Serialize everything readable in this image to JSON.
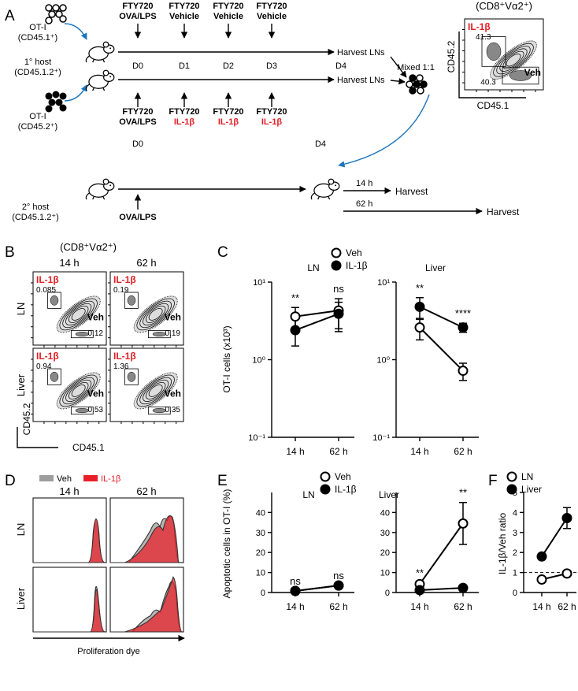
{
  "panel_labels": [
    "A",
    "B",
    "C",
    "D",
    "E",
    "F"
  ],
  "schematic": {
    "donor1": [
      "OT-I",
      "(CD45.1⁺)"
    ],
    "host1": [
      "1° host",
      "(CD45.1.2⁺)"
    ],
    "donor2": [
      "OT-I",
      "(CD45.2⁺)"
    ],
    "top_treatments": [
      [
        "FTY720",
        "OVA/LPS"
      ],
      [
        "FTY720",
        "Vehicle"
      ],
      [
        "FTY720",
        "Vehicle"
      ],
      [
        "FTY720",
        "Vehicle"
      ]
    ],
    "bottom_treatments": [
      [
        "FTY720",
        "OVA/LPS"
      ],
      [
        "FTY720",
        "IL-1β"
      ],
      [
        "FTY720",
        "IL-1β"
      ],
      [
        "FTY720",
        "IL-1β"
      ]
    ],
    "treatment_color": "#e31e24",
    "days": [
      "D0",
      "D1",
      "D2",
      "D3",
      "D4"
    ],
    "harvest_lns": [
      "Harvest LNs",
      "Harvest LNs"
    ],
    "mixed": "Mixed 1:1",
    "flow": {
      "gate_title": "(CD8⁺Vα2⁺)",
      "il1b": "IL-1β",
      "il1b_pct": "41.3",
      "veh": "Veh",
      "veh_pct": "40.3",
      "y_axis": "CD45.2",
      "x_axis": "CD45.1"
    },
    "second_host": [
      "2° host",
      "(CD45.1.2⁺)"
    ],
    "second_days": [
      "D0",
      "D4"
    ],
    "second_treatment": "OVA/LPS",
    "harvests": [
      {
        "time": "14 h",
        "label": "Harvest"
      },
      {
        "time": "62 h",
        "label": "Harvest"
      }
    ]
  },
  "panel_B": {
    "gate_title": "(CD8⁺Vα2⁺)",
    "columns": [
      "14 h",
      "62 h"
    ],
    "rows": [
      "LN",
      "Liver"
    ],
    "il1b_color": "#e31e24",
    "plots": [
      [
        {
          "il1b": "IL-1β",
          "il1b_pct": "0.085",
          "veh": "Veh",
          "veh_pct": "0.12"
        },
        {
          "il1b": "IL-1β",
          "il1b_pct": "0.19",
          "veh": "Veh",
          "veh_pct": "0.19"
        }
      ],
      [
        {
          "il1b": "IL-1β",
          "il1b_pct": "0.94",
          "veh": "Veh",
          "veh_pct": "0.53"
        },
        {
          "il1b": "IL-1β",
          "il1b_pct": "1.36",
          "veh": "Veh",
          "veh_pct": "0.35"
        }
      ]
    ],
    "y_axis": "CD45.2",
    "x_axis": "CD45.1"
  },
  "panel_D": {
    "legend": [
      {
        "name": "Veh",
        "color": "#9e9e9e"
      },
      {
        "name": "IL-1β",
        "color": "#e8202a"
      }
    ],
    "columns": [
      "14 h",
      "62 h"
    ],
    "rows": [
      "LN",
      "Liver"
    ],
    "x_axis": "Proliferation dye"
  },
  "chart_data": [
    {
      "type": "line",
      "title": "LN",
      "ylabel": "OT-I cells (x10³)",
      "log_y": true,
      "ylim": [
        0.1,
        10
      ],
      "yticks": [
        {
          "value": 0.1,
          "label": "10⁻¹"
        },
        {
          "value": 1,
          "label": "10⁰"
        },
        {
          "value": 10,
          "label": "10¹"
        }
      ],
      "categories": [
        "14 h",
        "62 h"
      ],
      "series": [
        {
          "name": "Veh",
          "color": "#000000",
          "filled": false,
          "values": [
            3.6,
            4.3
          ],
          "errors": [
            1.1,
            1.8
          ]
        },
        {
          "name": "IL-1β",
          "color": "#000000",
          "filled": true,
          "values": [
            2.4,
            3.9
          ],
          "errors": [
            0.9,
            1.6
          ]
        }
      ],
      "annotations": [
        "**",
        "ns"
      ]
    },
    {
      "type": "line",
      "title": "Liver",
      "log_y": true,
      "ylim": [
        0.1,
        10
      ],
      "yticks": [
        {
          "value": 0.1,
          "label": "10⁻¹"
        },
        {
          "value": 1,
          "label": "10⁰"
        },
        {
          "value": 10,
          "label": "10¹"
        }
      ],
      "categories": [
        "14 h",
        "62 h"
      ],
      "series": [
        {
          "color": "#000000",
          "filled": false,
          "values": [
            2.6,
            0.72
          ],
          "errors": [
            0.8,
            0.18
          ]
        },
        {
          "color": "#000000",
          "filled": true,
          "values": [
            4.8,
            2.6
          ],
          "errors": [
            1.5,
            0.35
          ]
        }
      ],
      "annotations": [
        "**",
        "****"
      ]
    },
    {
      "type": "line",
      "title": "LN",
      "ylabel": "Apoptotic cells in  OT-I (%)",
      "log_y": false,
      "ylim": [
        0,
        50
      ],
      "yticks": [
        0,
        10,
        20,
        30,
        40
      ],
      "categories": [
        "14 h",
        "62 h"
      ],
      "series": [
        {
          "name": "Veh",
          "color": "#000000",
          "filled": false,
          "values": [
            0.8,
            3.5
          ]
        },
        {
          "name": "IL-1β",
          "color": "#000000",
          "filled": true,
          "values": [
            0.8,
            3.5
          ]
        }
      ],
      "annotations": [
        "ns",
        "ns"
      ]
    },
    {
      "type": "line",
      "title": "Liver",
      "log_y": false,
      "ylim": [
        0,
        50
      ],
      "yticks": [
        0,
        10,
        20,
        30,
        40
      ],
      "categories": [
        "14 h",
        "62 h"
      ],
      "series": [
        {
          "color": "#000000",
          "filled": false,
          "values": [
            4.2,
            34.5
          ],
          "errors": [
            0.8,
            10.5
          ]
        },
        {
          "color": "#000000",
          "filled": true,
          "values": [
            1.2,
            2.3
          ],
          "errors": [
            0.3,
            0.4
          ]
        }
      ],
      "annotations": [
        "**",
        "**"
      ]
    },
    {
      "type": "line",
      "ylabel": "IL-1β/Veh ratio",
      "log_y": false,
      "ylim": [
        0,
        5
      ],
      "yticks": [
        0,
        1,
        2,
        3,
        4,
        5
      ],
      "categories": [
        "14 h",
        "62 h"
      ],
      "reference_line": 1,
      "series": [
        {
          "name": "LN",
          "color": "#000000",
          "filled": false,
          "values": [
            0.65,
            0.95
          ]
        },
        {
          "name": "Liver",
          "color": "#000000",
          "filled": true,
          "values": [
            1.8,
            3.72
          ],
          "errors": [
            0.05,
            0.52
          ]
        }
      ]
    }
  ]
}
